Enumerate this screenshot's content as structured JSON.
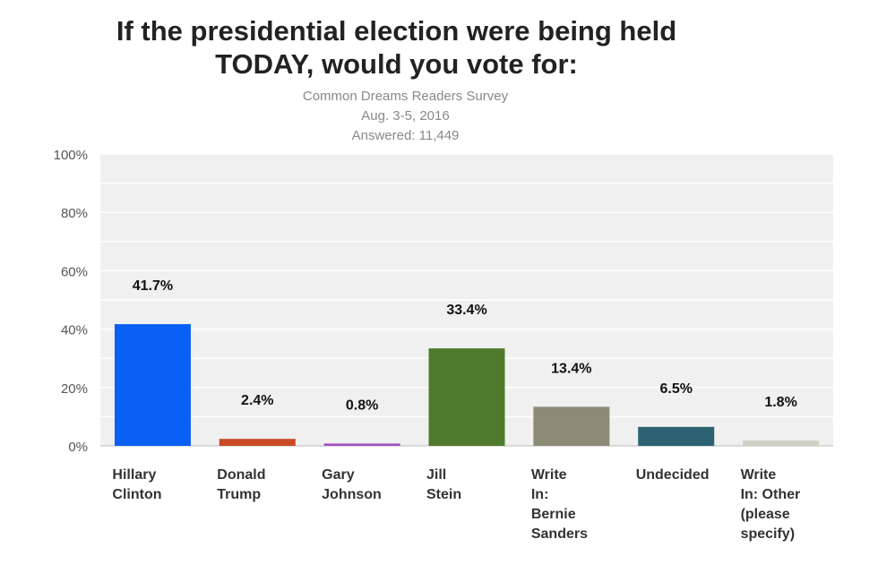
{
  "chart_data": {
    "type": "bar",
    "title": [
      "If the presidential election were being held",
      "TODAY, would you vote for:"
    ],
    "subtitle": [
      "Common Dreams Readers Survey",
      "Aug. 3-5, 2016",
      "Answered:  11,449"
    ],
    "categories": [
      [
        "Hillary",
        "Clinton"
      ],
      [
        "Donald",
        "Trump"
      ],
      [
        "Gary",
        "Johnson"
      ],
      [
        "Jill",
        "Stein"
      ],
      [
        "Write",
        "In:",
        "Bernie",
        "Sanders"
      ],
      [
        "Undecided"
      ],
      [
        "Write",
        "In: Other",
        "(please",
        "specify)"
      ]
    ],
    "values": [
      41.7,
      2.4,
      0.8,
      33.4,
      13.4,
      6.5,
      1.8
    ],
    "data_labels": [
      "41.7%",
      "2.4%",
      "0.8%",
      "33.4%",
      "13.4%",
      "6.5%",
      "1.8%"
    ],
    "colors": [
      "#0a5ff5",
      "#c84b24",
      "#a24fc0",
      "#4f7a2c",
      "#8b8b78",
      "#2d6272",
      "#d0d0c4"
    ],
    "ylim": [
      0,
      100
    ],
    "yticks": [
      "0%",
      "20%",
      "40%",
      "60%",
      "80%",
      "100%"
    ],
    "grid": true,
    "legend": "none",
    "plot_background": "#f0f0f0"
  }
}
